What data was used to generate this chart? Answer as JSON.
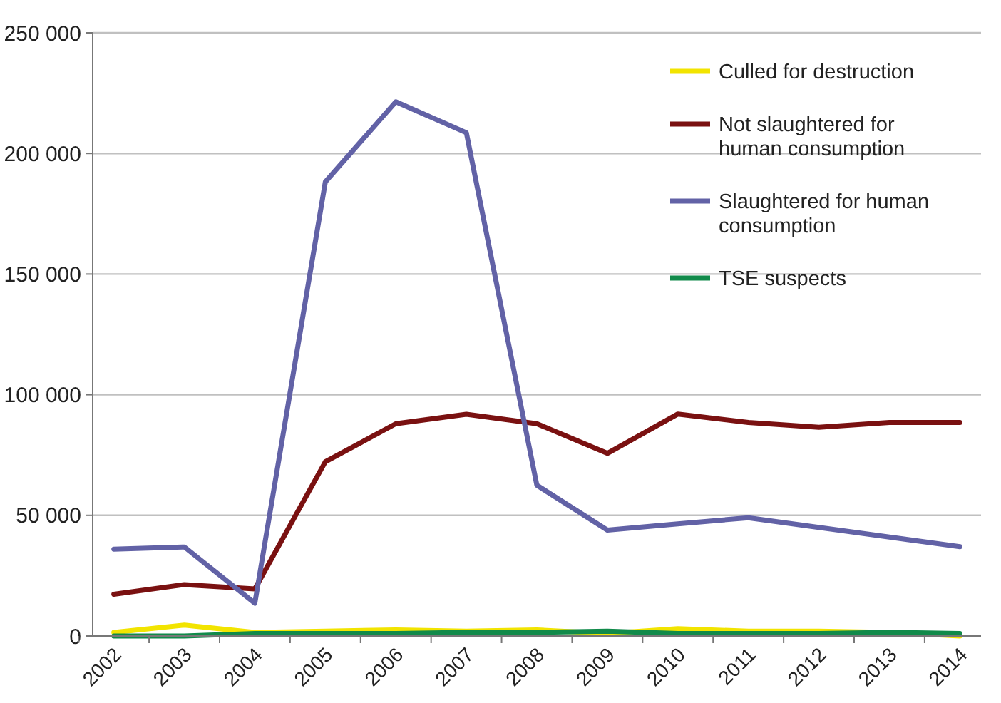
{
  "chart_data": {
    "type": "line",
    "categories": [
      "2002",
      "2003",
      "2004",
      "2005",
      "2006",
      "2007",
      "2008",
      "2009",
      "2010",
      "2011",
      "2012",
      "2013",
      "2014"
    ],
    "series": [
      {
        "name": "Culled for destruction",
        "color": "#f2e400",
        "values": [
          1500,
          4500,
          1500,
          2000,
          2500,
          2000,
          2500,
          1000,
          3000,
          2000,
          2000,
          1500,
          0
        ]
      },
      {
        "name": "Not slaughtered for human consumption",
        "color": "#7a1111",
        "values": [
          17300,
          21300,
          19500,
          72200,
          88000,
          91900,
          88000,
          75700,
          92000,
          88500,
          86500,
          88500,
          88500
        ]
      },
      {
        "name": "Slaughtered for human consumption",
        "color": "#6262a6",
        "values": [
          36000,
          36900,
          13600,
          188200,
          221400,
          208600,
          62500,
          43900,
          46500,
          49000,
          45000,
          41000,
          37000
        ]
      },
      {
        "name": "TSE suspects",
        "color": "#118a4a",
        "values": [
          0,
          0,
          1000,
          1000,
          1000,
          1500,
          1500,
          2000,
          1000,
          1000,
          1000,
          1500,
          1000
        ]
      }
    ],
    "ylim": [
      0,
      250000
    ],
    "yticks": [
      {
        "value": 0,
        "label": "0"
      },
      {
        "value": 50000,
        "label": "50 000"
      },
      {
        "value": 100000,
        "label": "100 000"
      },
      {
        "value": 150000,
        "label": "150 000"
      },
      {
        "value": 200000,
        "label": "200 000"
      },
      {
        "value": 250000,
        "label": "250 000"
      }
    ],
    "grid": "y",
    "legend": "top right",
    "marker": "none",
    "line_style": "solid"
  }
}
